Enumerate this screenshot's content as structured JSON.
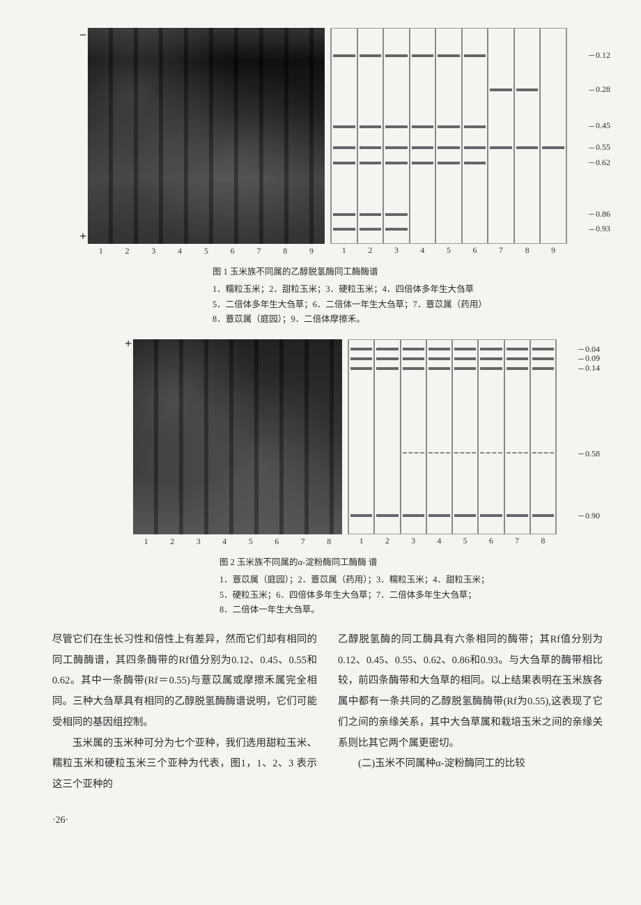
{
  "figure1": {
    "lanes": 9,
    "rf_values": [
      0.12,
      0.28,
      0.45,
      0.55,
      0.62,
      0.86,
      0.93
    ],
    "lane_labels": [
      "1",
      "2",
      "3",
      "4",
      "5",
      "6",
      "7",
      "8",
      "9"
    ],
    "polarity_top": "−",
    "polarity_bottom": "+",
    "band_color": "#666666",
    "diagram_border": "#888888",
    "caption_title": "图 1     玉米族不同属的乙醇脱氢酶同工酶酶谱",
    "caption_lines": [
      "1．糯粒玉米；2．甜粒玉米；3．硬粒玉米；4．四倍体多年生大刍草",
      "5．二倍体多年生大刍草；6．二倍体一年生大刍草；7．薏苡属（药用）",
      "8．薏苡属（庭园）；9．二倍体摩擦禾。"
    ]
  },
  "figure2": {
    "lanes": 8,
    "rf_values": [
      0.04,
      0.09,
      0.14,
      0.58,
      0.9
    ],
    "lane_labels": [
      "1",
      "2",
      "3",
      "4",
      "5",
      "6",
      "7",
      "8"
    ],
    "polarity_top": "+",
    "band_color": "#666666",
    "caption_title": "图 2     玉米族不同属的α-淀粉酶同工酶酶 谱",
    "caption_lines": [
      "1．薏苡属（庭园）；2．薏苡属（药用）；3．糯粒玉米；4．甜粒玉米；",
      "5．硬粒玉米；6．四倍体多年生大刍草；7．二倍体多年生大刍草；",
      "8．二倍体一年生大刍草。"
    ]
  },
  "body": {
    "left_col": [
      "尽管它们在生长习性和倍性上有差异，然而它们却有相同的同工酶酶谱，其四条酶带的Rf值分别为0.12、0.45、0.55和0.62。其中一条酶带(Rf＝0.55)与薏苡属或摩擦禾属完全相同。三种大刍草具有相同的乙醇脱氢酶酶谱说明，它们可能受相同的基因组控制。",
      "玉米属的玉米种可分为七个亚种，我们选用甜粒玉米、糯粒玉米和硬粒玉米三个亚种为代表，图1，1、2、3 表示这三个亚种的"
    ],
    "right_col": [
      "乙醇脱氢酶的同工酶具有六条相同的酶带；其Rf值分别为0.12、0.45、0.55、0.62、0.86和0.93。与大刍草的酶带相比较，前四条酶带和大刍草的相同。以上结果表明在玉米族各属中都有一条共同的乙醇脱氢酶酶带(Rf为0.55),这表现了它们之间的亲缘关系，其中大刍草属和栽培玉米之间的亲缘关系则比其它两个属更密切。",
      "(二)玉米不同属种α-淀粉酶同工的比较"
    ]
  },
  "page_number": "·26·",
  "colors": {
    "page_bg": "#f5f4f0",
    "text": "#2a2a2a",
    "gel_dark": "#1a1a1a"
  }
}
